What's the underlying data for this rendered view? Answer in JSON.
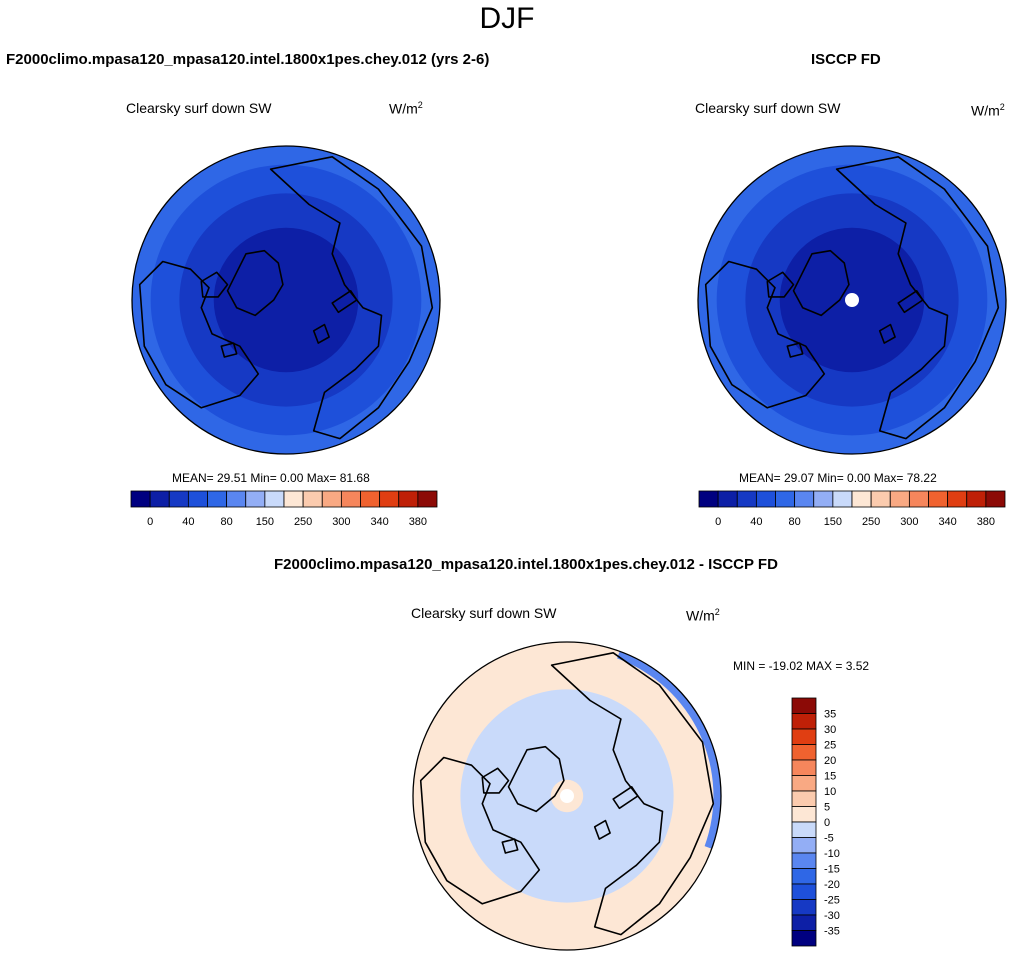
{
  "main_title": "DJF",
  "colors": {
    "blue_scale": [
      "#000080",
      "#0d1fa6",
      "#1639c4",
      "#1e50da",
      "#2f67e6",
      "#5a86f0",
      "#93aef5",
      "#c9dafa"
    ],
    "red_scale": [
      "#fde7d5",
      "#fbcbae",
      "#f9a983",
      "#f6865c",
      "#f0622f",
      "#e03e12",
      "#bf2007",
      "#8c0a06"
    ],
    "land": "#000000"
  },
  "panels": {
    "model": {
      "header": "F2000climo.mpasa120_mpasa120.intel.1800x1pes.chey.012 (yrs 2-6)",
      "variable": "Clearsky surf down SW",
      "units_base": "W/m",
      "units_exp": "2",
      "stats": "MEAN=  29.51  Min=   0.00  Max=  81.68"
    },
    "obs": {
      "header": "ISCCP FD",
      "variable": "Clearsky surf down SW",
      "units_base": "W/m",
      "units_exp": "2",
      "stats": "MEAN=  29.07  Min=   0.00  Max=  78.22"
    },
    "diff": {
      "header": "F2000climo.mpasa120_mpasa120.intel.1800x1pes.chey.012 - ISCCP FD",
      "variable": "Clearsky surf down SW",
      "units_base": "W/m",
      "units_exp": "2",
      "stats": "MIN = -19.02 MAX =   3.52"
    }
  },
  "chart_data": [
    {
      "type": "heatmap",
      "projection": "north-polar-stereographic",
      "title": "Clearsky surf down SW",
      "units": "W/m2",
      "mean": 29.51,
      "min": 0.0,
      "max": 81.68,
      "levels": [
        0,
        20,
        40,
        60,
        80,
        100,
        150,
        200,
        250,
        275,
        300,
        320,
        340,
        360,
        380
      ],
      "tick_labels": [
        "0",
        "40",
        "80",
        "150",
        "250",
        "300",
        "340",
        "380"
      ],
      "bands": [
        {
          "lat_from": 90,
          "lat_to": 68,
          "value_range": [
            0,
            20
          ]
        },
        {
          "lat_from": 68,
          "lat_to": 58,
          "value_range": [
            20,
            40
          ]
        },
        {
          "lat_from": 58,
          "lat_to": 50,
          "value_range": [
            40,
            60
          ]
        },
        {
          "lat_from": 50,
          "lat_to": 45,
          "value_range": [
            60,
            80
          ]
        }
      ]
    },
    {
      "type": "heatmap",
      "projection": "north-polar-stereographic",
      "title": "Clearsky surf down SW",
      "units": "W/m2",
      "mean": 29.07,
      "min": 0.0,
      "max": 78.22,
      "levels": [
        0,
        20,
        40,
        60,
        80,
        100,
        150,
        200,
        250,
        275,
        300,
        320,
        340,
        360,
        380
      ],
      "tick_labels": [
        "0",
        "40",
        "80",
        "150",
        "250",
        "300",
        "340",
        "380"
      ],
      "missing_region": {
        "lat_from": 90,
        "lat_to": 88
      },
      "bands": [
        {
          "lat_from": 88,
          "lat_to": 68,
          "value_range": [
            0,
            20
          ]
        },
        {
          "lat_from": 68,
          "lat_to": 58,
          "value_range": [
            20,
            40
          ]
        },
        {
          "lat_from": 58,
          "lat_to": 50,
          "value_range": [
            40,
            60
          ]
        },
        {
          "lat_from": 50,
          "lat_to": 45,
          "value_range": [
            60,
            80
          ]
        }
      ]
    },
    {
      "type": "heatmap",
      "projection": "north-polar-stereographic",
      "title": "Clearsky surf down SW",
      "units": "W/m2",
      "min": -19.02,
      "max": 3.52,
      "levels": [
        -35,
        -30,
        -25,
        -20,
        -15,
        -10,
        -5,
        0,
        5,
        10,
        15,
        20,
        25,
        30,
        35
      ],
      "tick_labels": [
        "35",
        "30",
        "25",
        "20",
        "15",
        "10",
        "5",
        "0",
        "-5",
        "-10",
        "-15",
        "-20",
        "-25",
        "-30",
        "-35"
      ],
      "missing_region": {
        "lat_from": 90,
        "lat_to": 88
      },
      "bands": [
        {
          "lat_from": 88,
          "lat_to": 85,
          "value_range": [
            0,
            5
          ]
        },
        {
          "lat_from": 85,
          "lat_to": 58,
          "value_range": [
            -5,
            0
          ]
        },
        {
          "lat_from": 58,
          "lat_to": 45,
          "value_range": [
            0,
            5
          ]
        },
        {
          "lat_from": 47,
          "lat_to": 45,
          "sector": "north-pacific",
          "value_range": [
            -15,
            -10
          ]
        }
      ]
    }
  ]
}
